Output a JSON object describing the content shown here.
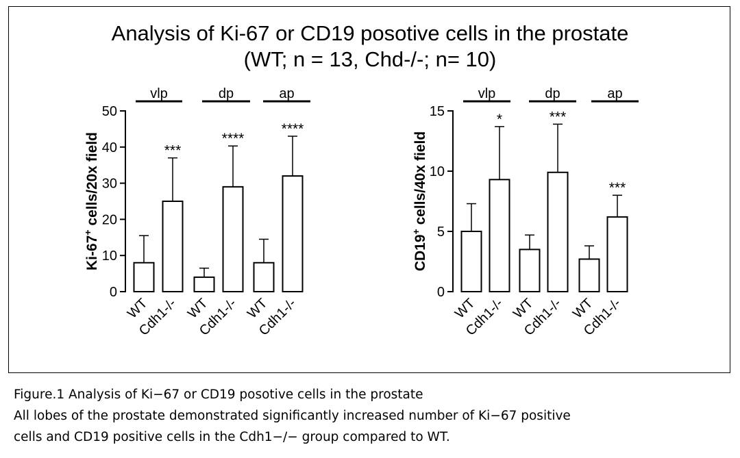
{
  "figure": {
    "title_line1": "Analysis of Ki-67 or CD19 posotive cells in the prostate",
    "title_line2": "(WT; n = 13, Chd-/-; n= 10)"
  },
  "caption": {
    "line1": "Figure.1  Analysis of Ki−67 or CD19 posotive cells in the prostate",
    "line2": "All lobes of the prostate demonstrated significantly increased number of Ki−67 positive",
    "line3": "cells and CD19 positive cells in the Cdh1−/− group compared to WT."
  },
  "chart_data": [
    {
      "type": "bar",
      "ylabel_main": "Ki-67",
      "ylabel_sup": "+",
      "ylabel_rest": " cells/20x field",
      "ylim": [
        0,
        50
      ],
      "yticks": [
        0,
        10,
        20,
        30,
        40,
        50
      ],
      "categories": [
        "WT",
        "Cdh1-/-",
        "WT",
        "Cdh1-/-",
        "WT",
        "Cdh1-/-"
      ],
      "values": [
        8,
        25,
        4,
        29,
        8,
        32
      ],
      "errors": [
        7.5,
        12,
        2.5,
        11.3,
        6.5,
        11
      ],
      "significance": [
        "",
        "***",
        "",
        "****",
        "",
        "****"
      ],
      "groups": [
        "vlp",
        "dp",
        "ap"
      ],
      "grid": false
    },
    {
      "type": "bar",
      "ylabel_main": "CD19",
      "ylabel_sup": "+",
      "ylabel_rest": " cells/40x field",
      "ylim": [
        0,
        15
      ],
      "yticks": [
        0,
        5,
        10,
        15
      ],
      "categories": [
        "WT",
        "Cdh1-/-",
        "WT",
        "Cdh1-/-",
        "WT",
        "Cdh1-/-"
      ],
      "values": [
        5,
        9.3,
        3.5,
        9.9,
        2.7,
        6.2
      ],
      "errors": [
        2.3,
        4.4,
        1.2,
        4.0,
        1.1,
        1.8
      ],
      "significance": [
        "",
        "*",
        "",
        "***",
        "",
        "***"
      ],
      "groups": [
        "vlp",
        "dp",
        "ap"
      ],
      "grid": false
    }
  ]
}
